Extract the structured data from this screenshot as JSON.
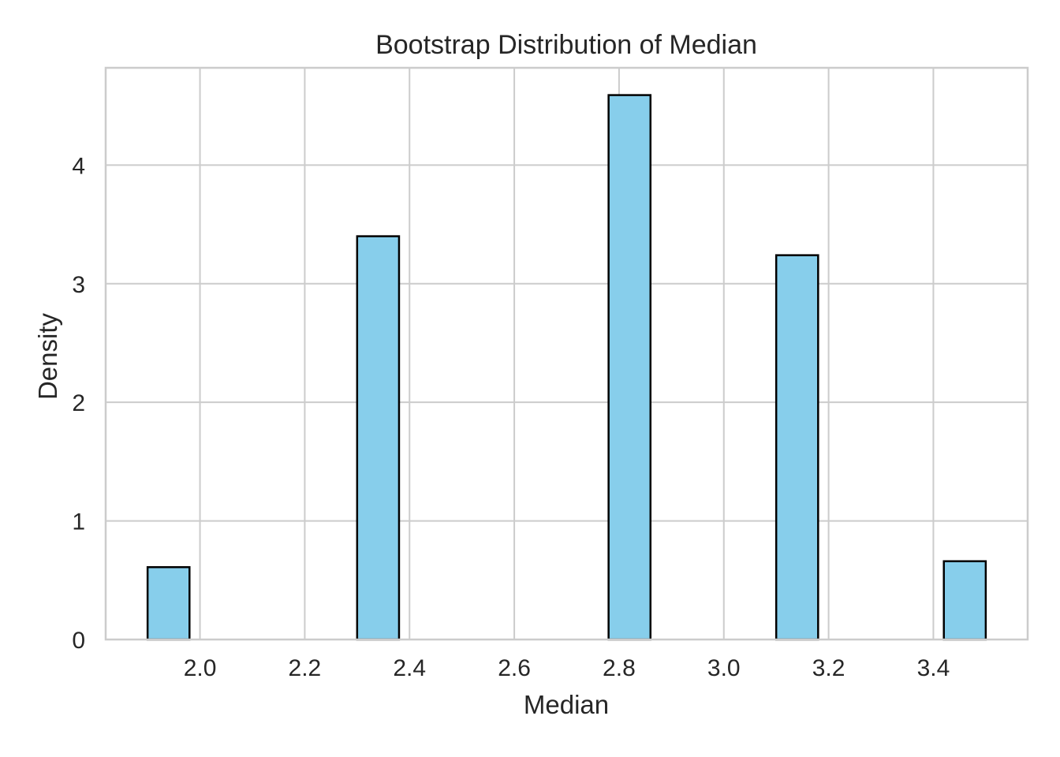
{
  "chart_data": {
    "type": "bar",
    "title": "Bootstrap Distribution of Median",
    "xlabel": "Median",
    "ylabel": "Density",
    "xlim": [
      1.82,
      3.58
    ],
    "ylim": [
      0,
      4.82
    ],
    "xticks": [
      2.0,
      2.2,
      2.4,
      2.6,
      2.8,
      3.0,
      3.2,
      3.4
    ],
    "xtick_labels": [
      "2.0",
      "2.2",
      "2.4",
      "2.6",
      "2.8",
      "3.0",
      "3.2",
      "3.4"
    ],
    "yticks": [
      0,
      1,
      2,
      3,
      4
    ],
    "ytick_labels": [
      "0",
      "1",
      "2",
      "3",
      "4"
    ],
    "grid": true,
    "bar_color": "#87CEEB",
    "edge_color": "#000000",
    "bins": [
      {
        "x0": 1.9,
        "x1": 1.98,
        "value": 0.61
      },
      {
        "x0": 2.3,
        "x1": 2.38,
        "value": 3.4
      },
      {
        "x0": 2.78,
        "x1": 2.86,
        "value": 4.59
      },
      {
        "x0": 3.1,
        "x1": 3.18,
        "value": 3.24
      },
      {
        "x0": 3.42,
        "x1": 3.5,
        "value": 0.66
      }
    ]
  }
}
